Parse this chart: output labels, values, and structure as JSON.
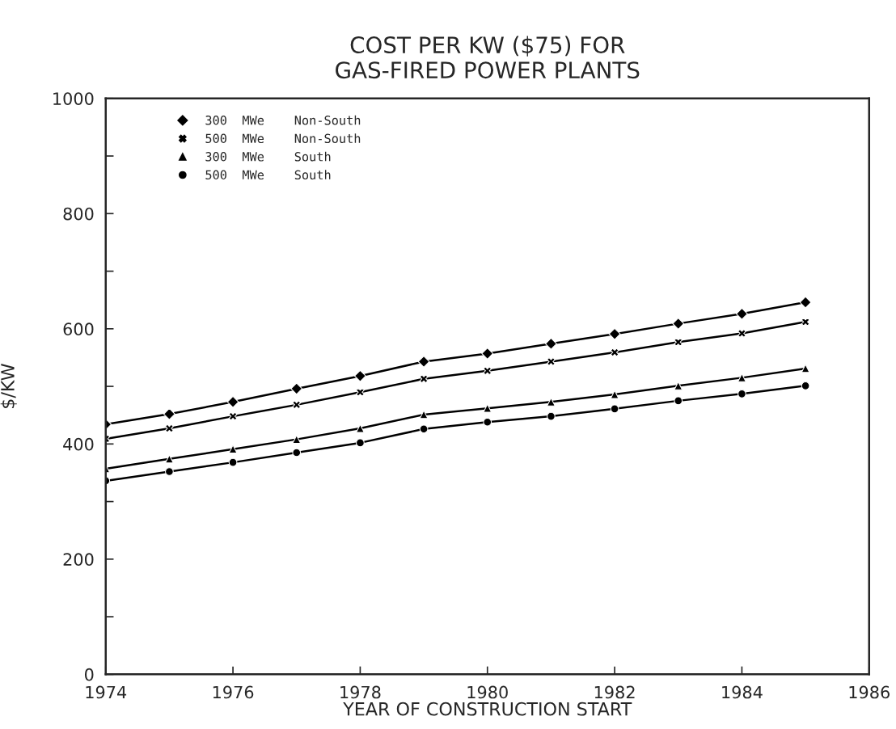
{
  "chart_data": {
    "type": "line",
    "title": "COST PER KW ($75) FOR\nGAS-FIRED POWER PLANTS",
    "xlabel": "YEAR OF CONSTRUCTION START",
    "ylabel": "$/KW",
    "x": [
      1974,
      1975,
      1976,
      1977,
      1978,
      1979,
      1980,
      1981,
      1982,
      1983,
      1984,
      1985
    ],
    "series": [
      {
        "name": "300  MWe    Non-South",
        "color": "#000000",
        "marker": "diamond",
        "values": [
          434,
          452,
          473,
          496,
          518,
          543,
          557,
          574,
          591,
          609,
          626,
          646
        ]
      },
      {
        "name": "500  MWe    Non-South",
        "color": "#000000",
        "marker": "cross",
        "values": [
          409,
          427,
          448,
          468,
          490,
          513,
          527,
          543,
          559,
          577,
          592,
          612
        ]
      },
      {
        "name": "300  MWe    South",
        "color": "#000000",
        "marker": "triangle",
        "values": [
          357,
          374,
          391,
          408,
          427,
          451,
          462,
          473,
          486,
          501,
          515,
          531
        ]
      },
      {
        "name": "500  MWe    South",
        "color": "#000000",
        "marker": "circle",
        "values": [
          336,
          352,
          368,
          385,
          402,
          426,
          438,
          448,
          461,
          475,
          487,
          501
        ]
      }
    ],
    "xlim": [
      1974,
      1986
    ],
    "xticks": [
      1974,
      1976,
      1978,
      1980,
      1982,
      1984,
      1986
    ],
    "ylim": [
      0,
      1000
    ],
    "yticks": [
      0,
      {
        "value": 100,
        "label": null
      },
      200,
      {
        "value": 300,
        "label": null
      },
      400,
      {
        "value": 500,
        "label": null
      },
      600,
      {
        "value": 700,
        "label": null
      },
      800,
      {
        "value": 900,
        "label": null
      },
      1000
    ],
    "grid": false,
    "legend": "top left",
    "line_style": "solid"
  }
}
